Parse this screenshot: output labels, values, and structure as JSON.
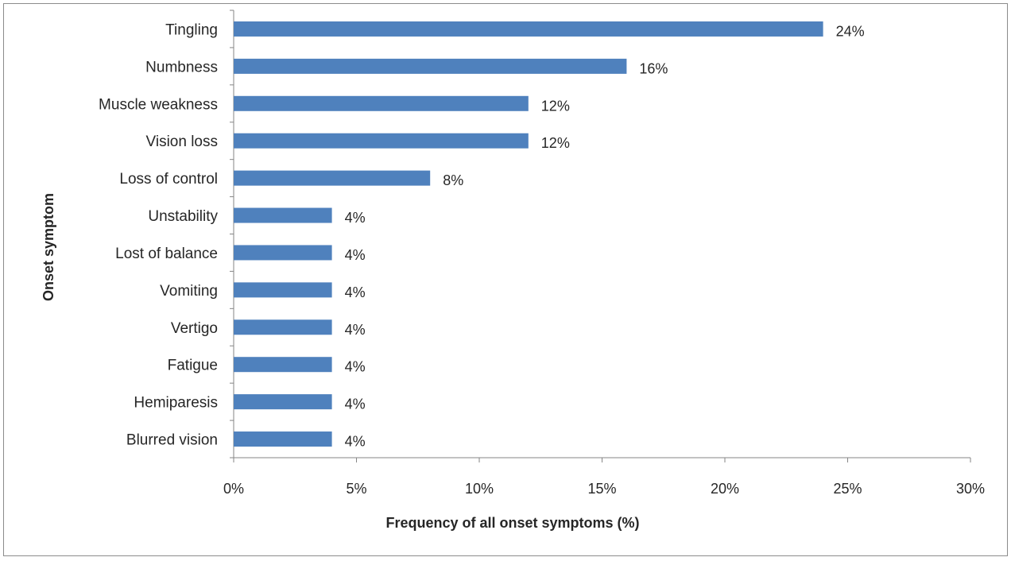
{
  "chart_data": {
    "type": "bar",
    "orientation": "horizontal",
    "title": "",
    "xlabel": "Frequency of all onset symptoms (%)",
    "ylabel": "Onset symptom",
    "categories": [
      "Tingling",
      "Numbness",
      "Muscle weakness",
      "Vision loss",
      "Loss of control",
      "Unstability",
      "Lost of balance",
      "Vomiting",
      "Vertigo",
      "Fatigue",
      "Hemiparesis",
      "Blurred vision"
    ],
    "values": [
      24,
      16,
      12,
      12,
      8,
      4,
      4,
      4,
      4,
      4,
      4,
      4
    ],
    "data_labels": [
      "24%",
      "16%",
      "12%",
      "12%",
      "8%",
      "4%",
      "4%",
      "4%",
      "4%",
      "4%",
      "4%",
      "4%"
    ],
    "xlim": [
      0,
      30
    ],
    "xticks": [
      0,
      5,
      10,
      15,
      20,
      25,
      30
    ],
    "xtick_labels": [
      "0%",
      "5%",
      "10%",
      "15%",
      "20%",
      "25%",
      "30%"
    ],
    "grid": false,
    "legend": "none",
    "bar_color": "#4f81bd",
    "axis_color": "#868686"
  }
}
